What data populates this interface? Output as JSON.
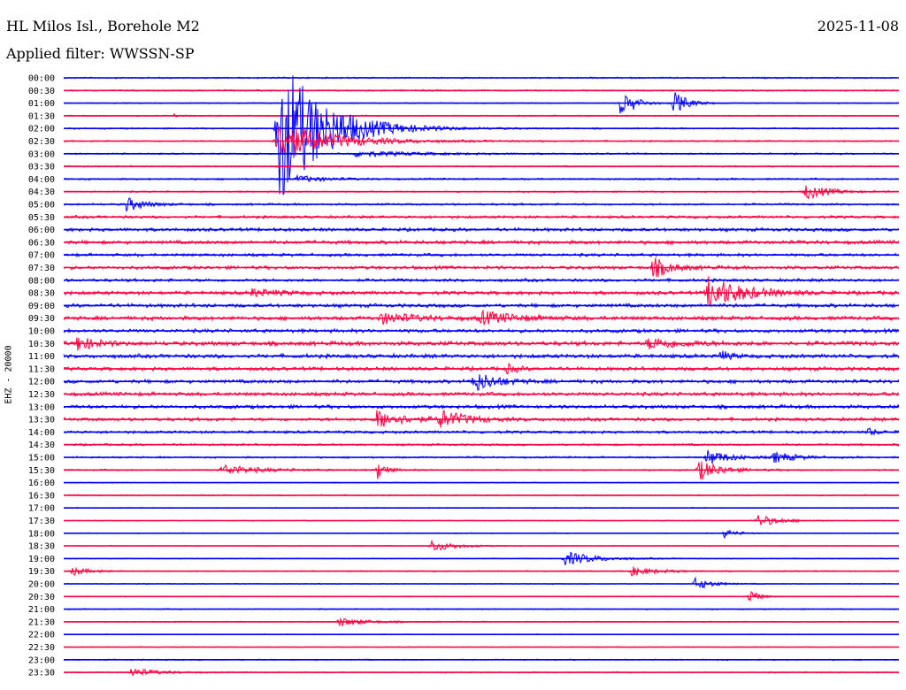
{
  "header": {
    "station": "HL Milos Isl., Borehole M2",
    "date": "2025-11-08",
    "filter": "Applied filter: WWSSN-SP"
  },
  "chart_data": {
    "type": "helicorder",
    "ylabel": "EHZ - 20000",
    "row_labels": [
      "00:00",
      "00:30",
      "01:00",
      "01:30",
      "02:00",
      "02:30",
      "03:00",
      "03:30",
      "04:00",
      "04:30",
      "05:00",
      "05:30",
      "06:00",
      "06:30",
      "07:00",
      "07:30",
      "08:00",
      "08:30",
      "09:00",
      "09:30",
      "10:00",
      "10:30",
      "11:00",
      "11:30",
      "12:00",
      "12:30",
      "13:00",
      "13:30",
      "14:00",
      "14:30",
      "15:00",
      "15:30",
      "16:00",
      "16:30",
      "17:00",
      "17:30",
      "18:00",
      "18:30",
      "19:00",
      "19:30",
      "20:00",
      "20:30",
      "21:00",
      "21:30",
      "22:00",
      "22:30",
      "23:00",
      "23:30"
    ],
    "colors": [
      "#0000ff",
      "#ff0040"
    ],
    "noise": [
      1,
      1,
      0.8,
      0.8,
      1,
      1,
      1,
      1,
      1.2,
      1,
      1.4,
      1.8,
      2.2,
      2.4,
      2,
      2.2,
      2,
      2.4,
      2.4,
      2.6,
      2.4,
      2.8,
      2.6,
      2.4,
      2.4,
      2.4,
      2.4,
      2.2,
      1.8,
      1.4,
      1.2,
      1,
      0.6,
      0.8,
      0.6,
      0.6,
      0.6,
      0.6,
      0.6,
      0.8,
      0.6,
      0.6,
      0.8,
      0.8,
      0.5,
      0.6,
      0.8,
      0.8
    ],
    "events": [
      {
        "row": 2,
        "t": 0.666,
        "amp": 12,
        "dur": 0.015
      },
      {
        "row": 2,
        "t": 0.73,
        "amp": 14,
        "dur": 0.015
      },
      {
        "row": 2,
        "t": 0.682,
        "amp": 4,
        "dur": 0.01
      },
      {
        "row": 3,
        "t": 0.13,
        "amp": 3,
        "dur": 0.005
      },
      {
        "row": 4,
        "t": 0.258,
        "amp": 85,
        "dur": 0.05
      },
      {
        "row": 5,
        "t": 0.258,
        "amp": 22,
        "dur": 0.06
      },
      {
        "row": 6,
        "t": 0.35,
        "amp": 3,
        "dur": 0.08
      },
      {
        "row": 8,
        "t": 0.28,
        "amp": 4,
        "dur": 0.03
      },
      {
        "row": 9,
        "t": 0.888,
        "amp": 9,
        "dur": 0.025
      },
      {
        "row": 10,
        "t": 0.075,
        "amp": 8,
        "dur": 0.02
      },
      {
        "row": 15,
        "t": 0.705,
        "amp": 12,
        "dur": 0.02
      },
      {
        "row": 17,
        "t": 0.772,
        "amp": 18,
        "dur": 0.04
      },
      {
        "row": 17,
        "t": 0.225,
        "amp": 4,
        "dur": 0.03
      },
      {
        "row": 19,
        "t": 0.38,
        "amp": 6,
        "dur": 0.04
      },
      {
        "row": 19,
        "t": 0.5,
        "amp": 7,
        "dur": 0.04
      },
      {
        "row": 21,
        "t": 0.015,
        "amp": 9,
        "dur": 0.02
      },
      {
        "row": 21,
        "t": 0.7,
        "amp": 6,
        "dur": 0.04
      },
      {
        "row": 22,
        "t": 0.785,
        "amp": 7,
        "dur": 0.01
      },
      {
        "row": 23,
        "t": 0.53,
        "amp": 6,
        "dur": 0.01
      },
      {
        "row": 24,
        "t": 0.49,
        "amp": 12,
        "dur": 0.025
      },
      {
        "row": 27,
        "t": 0.375,
        "amp": 10,
        "dur": 0.03
      },
      {
        "row": 27,
        "t": 0.45,
        "amp": 10,
        "dur": 0.03
      },
      {
        "row": 28,
        "t": 0.962,
        "amp": 5,
        "dur": 0.01
      },
      {
        "row": 31,
        "t": 0.19,
        "amp": 6,
        "dur": 0.04
      },
      {
        "row": 31,
        "t": 0.375,
        "amp": 12,
        "dur": 0.01
      },
      {
        "row": 31,
        "t": 0.76,
        "amp": 12,
        "dur": 0.025
      },
      {
        "row": 30,
        "t": 0.77,
        "amp": 9,
        "dur": 0.025
      },
      {
        "row": 30,
        "t": 0.85,
        "amp": 6,
        "dur": 0.025
      },
      {
        "row": 35,
        "t": 0.83,
        "amp": 7,
        "dur": 0.025
      },
      {
        "row": 36,
        "t": 0.79,
        "amp": 5,
        "dur": 0.015
      },
      {
        "row": 37,
        "t": 0.44,
        "amp": 7,
        "dur": 0.025
      },
      {
        "row": 38,
        "t": 0.6,
        "amp": 8,
        "dur": 0.035
      },
      {
        "row": 39,
        "t": 0.01,
        "amp": 6,
        "dur": 0.015
      },
      {
        "row": 39,
        "t": 0.68,
        "amp": 5,
        "dur": 0.03
      },
      {
        "row": 40,
        "t": 0.755,
        "amp": 7,
        "dur": 0.02
      },
      {
        "row": 41,
        "t": 0.82,
        "amp": 10,
        "dur": 0.01
      },
      {
        "row": 43,
        "t": 0.33,
        "amp": 5,
        "dur": 0.03
      },
      {
        "row": 47,
        "t": 0.08,
        "amp": 5,
        "dur": 0.03
      }
    ]
  }
}
